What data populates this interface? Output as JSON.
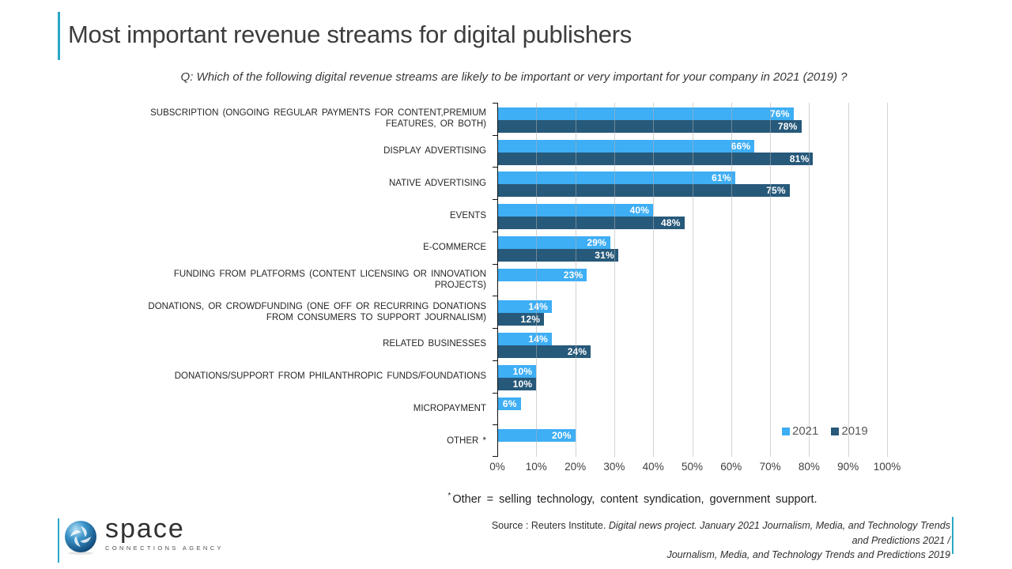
{
  "title": "Most important revenue streams for digital publishers",
  "subtitle": "Q: Which of the following digital revenue streams are likely to be important or very important for your company in 2021 (2019) ?",
  "chart_data": {
    "type": "bar",
    "orientation": "horizontal",
    "title": "Most important revenue streams for digital publishers",
    "categories": [
      "SUBSCRIPTION (ONGOING REGULAR PAYMENTS FOR CONTENT,PREMIUM FEATURES, OR BOTH)",
      "DISPLAY ADVERTISING",
      "NATIVE ADVERTISING",
      "EVENTS",
      "E-COMMERCE",
      "FUNDING FROM PLATFORMS (CONTENT LICENSING OR INNOVATION PROJECTS)",
      "DONATIONS, OR CROWDFUNDING (ONE OFF OR RECURRING DONATIONS FROM CONSUMERS TO SUPPORT JOURNALISM)",
      "RELATED BUSINESSES",
      "DONATIONS/SUPPORT FROM PHILANTHROPIC FUNDS/FOUNDATIONS",
      "MICROPAYMENT",
      "OTHER *"
    ],
    "series": [
      {
        "name": "2021",
        "color": "#3EAEF5",
        "values": [
          76,
          66,
          61,
          40,
          29,
          23,
          14,
          14,
          10,
          6,
          20
        ]
      },
      {
        "name": "2019",
        "color": "#27597A",
        "values": [
          78,
          81,
          75,
          48,
          31,
          null,
          12,
          24,
          10,
          null,
          null
        ]
      }
    ],
    "value_suffix": "%",
    "xlim": [
      0,
      100
    ],
    "x_ticks": [
      "0%",
      "10%",
      "20%",
      "30%",
      "40%",
      "50%",
      "60%",
      "70%",
      "80%",
      "90%",
      "100%"
    ],
    "grid": true,
    "legend_position": "inside-bottom-right"
  },
  "footnote": {
    "marker": "*",
    "text": "Other = selling technology, content syndication, government support."
  },
  "source": {
    "prefix": "Source : Reuters Institute. ",
    "detail_line1": "Digital news project. January 2021 Journalism, Media, and Technology Trends and Predictions 2021 /",
    "detail_line2": "Journalism, Media, and Technology Trends and Predictions 2019",
    "dot": "."
  },
  "logo": {
    "name": "space",
    "tagline": "CONNECTIONS AGENCY"
  },
  "colors": {
    "accent_teal": "#29A8C7",
    "series_2021": "#3EAEF5",
    "series_2019": "#27597A",
    "gridline": "#AFAFAF",
    "title_text": "#3D3D3D",
    "background": "#FFFFFF"
  }
}
